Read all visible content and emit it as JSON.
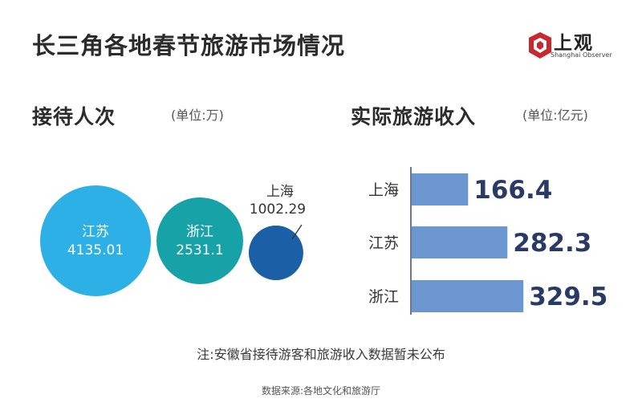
{
  "title": "长三角各地春节旅游市场情况",
  "logo": {
    "name": "上观",
    "subtitle": "Shanghai Observer"
  },
  "colors": {
    "jiangsu_bubble": "#2cb0e6",
    "zhejiang_bubble": "#17a2a8",
    "shanghai_bubble": "#1b5fa6",
    "bar": "#6b96d0",
    "bar_value": "#2a3a66",
    "logo_red": "#c8282f"
  },
  "chart_data": [
    {
      "type": "bubble",
      "title": "接待人次",
      "unit": "(单位:万)",
      "series": [
        {
          "label": "江苏",
          "value": 4135.01,
          "value_text": "4135.01",
          "color": "#2cb0e6"
        },
        {
          "label": "浙江",
          "value": 2531.1,
          "value_text": "2531.1",
          "color": "#17a2a8"
        },
        {
          "label": "上海",
          "value": 1002.29,
          "value_text": "1002.29",
          "color": "#1b5fa6"
        }
      ]
    },
    {
      "type": "bar",
      "orientation": "horizontal",
      "title": "实际旅游收入",
      "unit": "(单位:亿元)",
      "categories": [
        "上海",
        "江苏",
        "浙江"
      ],
      "values": [
        166.4,
        282.3,
        329.5
      ],
      "value_texts": [
        "166.4",
        "282.3",
        "329.5"
      ],
      "xlim": [
        0,
        340
      ],
      "grid": false
    }
  ],
  "note": "注:安徽省接待游客和旅游收入数据暂未公布",
  "source": "数据来源:各地文化和旅游厅"
}
